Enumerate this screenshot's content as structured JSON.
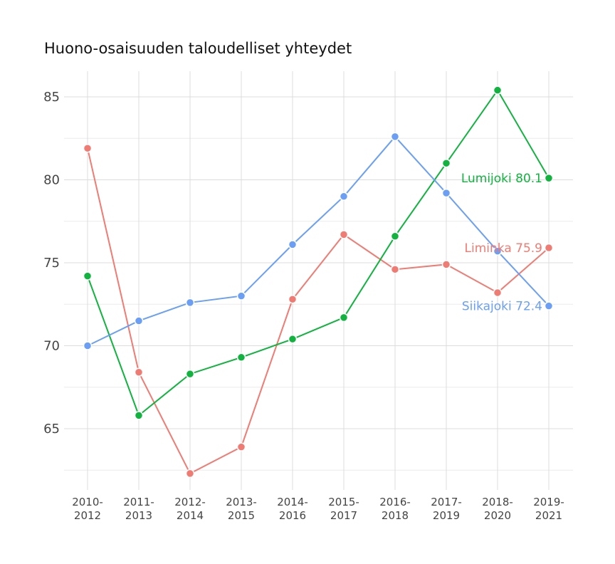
{
  "chart_data": {
    "type": "line",
    "title": "Huono-osaisuuden taloudelliset yhteydet",
    "xlabel": "",
    "ylabel": "",
    "categories": [
      "2010-\n2012",
      "2011-\n2013",
      "2012-\n2014",
      "2013-\n2015",
      "2014-\n2016",
      "2015-\n2017",
      "2016-\n2018",
      "2017-\n2019",
      "2018-\n2020",
      "2019-\n2021"
    ],
    "ylim": [
      61.5,
      86.5
    ],
    "yticks": [
      65,
      70,
      75,
      80,
      85
    ],
    "grid": true,
    "legend": "none",
    "series": [
      {
        "name": "Liminka",
        "color": "#f07b72",
        "values": [
          81.9,
          68.4,
          62.3,
          63.9,
          72.8,
          76.7,
          74.6,
          74.9,
          73.2,
          75.9
        ],
        "end_label": "Liminka 75.9"
      },
      {
        "name": "Lumijoki",
        "color": "#0fb33d",
        "values": [
          74.2,
          65.8,
          68.3,
          69.3,
          70.4,
          71.7,
          76.6,
          81.0,
          85.4,
          80.1
        ],
        "end_label": "Lumijoki 80.1"
      },
      {
        "name": "Siikajoki",
        "color": "#6a9ff5",
        "values": [
          70.0,
          71.5,
          72.6,
          73.0,
          76.1,
          79.0,
          82.6,
          79.2,
          75.7,
          72.4
        ],
        "end_label": "Siikajoki 72.4"
      }
    ]
  }
}
